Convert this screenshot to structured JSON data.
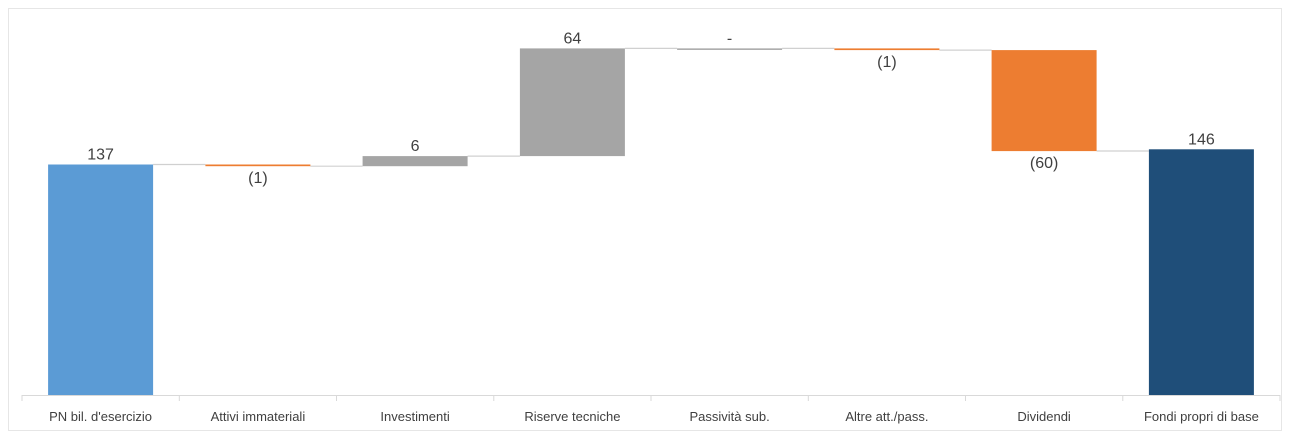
{
  "chart_data": {
    "type": "waterfall",
    "title": "",
    "xlabel": "",
    "ylabel": "",
    "categories": [
      "PN  bil. d'esercizio",
      "Attivi immateriali",
      "Investimenti",
      "Riserve tecniche",
      "Passività sub.",
      "Altre att./pass.",
      "Dividendi",
      "Fondi propri di base"
    ],
    "values": [
      137,
      -1,
      6,
      64,
      0,
      -1,
      -60,
      146
    ],
    "bar_kind": [
      "total",
      "delta",
      "delta",
      "delta",
      "delta",
      "delta",
      "delta",
      "total"
    ],
    "data_labels": [
      "137",
      "(1)",
      "6",
      "64",
      "-",
      "(1)",
      "(60)",
      "146"
    ],
    "label_position": [
      "above",
      "below",
      "above",
      "above",
      "above",
      "below",
      "below",
      "above"
    ],
    "ylim": [
      0,
      230
    ],
    "grid": false,
    "legend": "none",
    "colors": {
      "start_total": "#5b9bd5",
      "increase": "#a5a5a5",
      "decrease": "#ed7d31",
      "end_total": "#1f4e79",
      "connector": "#d0d0d0",
      "axis": "#d9d9d9",
      "text": "#404040"
    }
  }
}
